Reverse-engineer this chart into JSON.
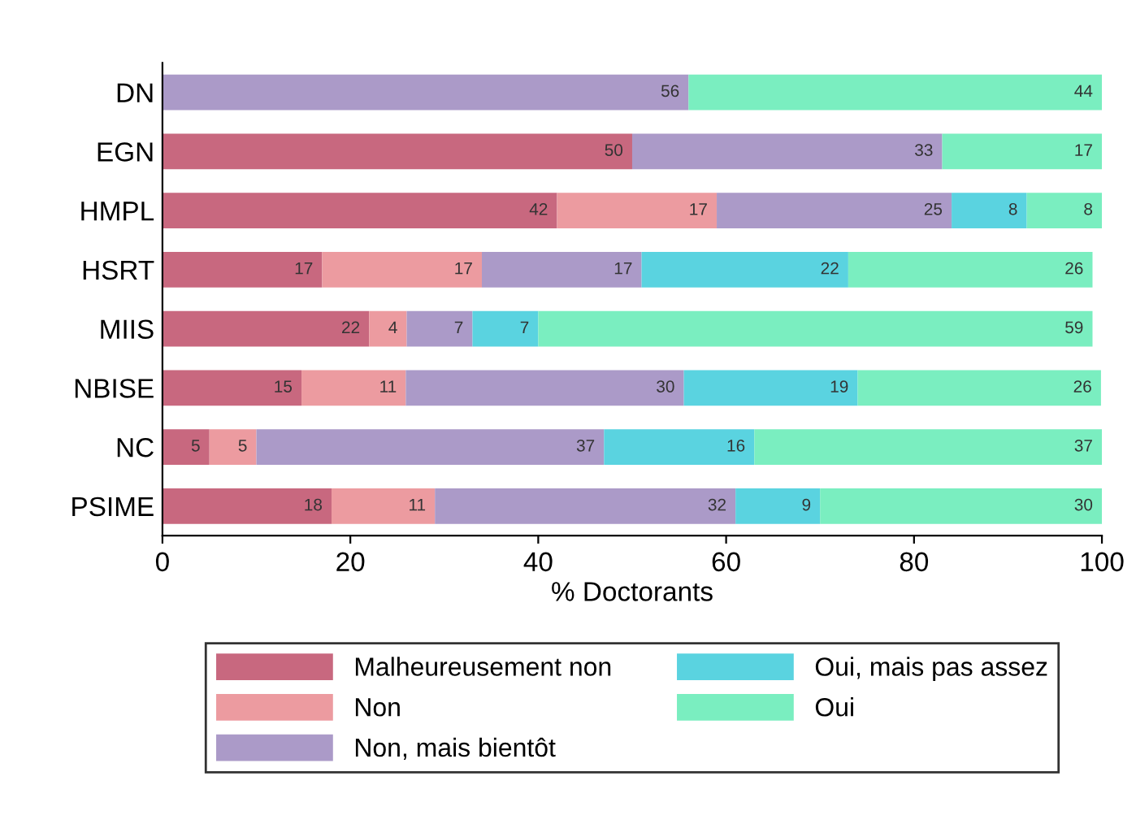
{
  "chart_data": {
    "type": "bar",
    "orientation": "horizontal",
    "stacked": true,
    "legend": "bottom",
    "grid": false,
    "xlabel": "% Doctorants",
    "xlim": [
      0,
      100
    ],
    "xticks": [
      0,
      20,
      40,
      60,
      80,
      100
    ],
    "categories": [
      "DN",
      "EGN",
      "HMPL",
      "HSRT",
      "MIIS",
      "NBISE",
      "NC",
      "PSIME"
    ],
    "series": [
      {
        "name": "Malheureusement non",
        "color": "#c8687f",
        "values": [
          null,
          50,
          42,
          17,
          22,
          14.8,
          5,
          18
        ],
        "value_labels": [
          null,
          "50",
          "42",
          "17",
          "22",
          "15",
          "5",
          "18"
        ]
      },
      {
        "name": "Non",
        "color": "#ec9ba0",
        "values": [
          null,
          null,
          17,
          17,
          4,
          11.1,
          5,
          11
        ],
        "value_labels": [
          null,
          null,
          "17",
          "17",
          "4",
          "11",
          "5",
          "11"
        ]
      },
      {
        "name": "Non, mais bientôt",
        "color": "#ab9ac8",
        "values": [
          56,
          33,
          25,
          17,
          7,
          29.6,
          37,
          32
        ],
        "value_labels": [
          "56",
          "33",
          "25",
          "17",
          "7",
          "30",
          "37",
          "32"
        ]
      },
      {
        "name": "Oui, mais pas assez",
        "color": "#5ad3e0",
        "values": [
          null,
          null,
          8,
          22,
          7,
          18.5,
          16,
          9
        ],
        "value_labels": [
          null,
          null,
          "8",
          "22",
          "7",
          "19",
          "16",
          "9"
        ]
      },
      {
        "name": "Oui",
        "color": "#7aeec0",
        "values": [
          44,
          17,
          8,
          26,
          59,
          25.9,
          37,
          30
        ],
        "value_labels": [
          "44",
          "17",
          "8",
          "26",
          "59",
          "26",
          "37",
          "30"
        ]
      }
    ]
  }
}
